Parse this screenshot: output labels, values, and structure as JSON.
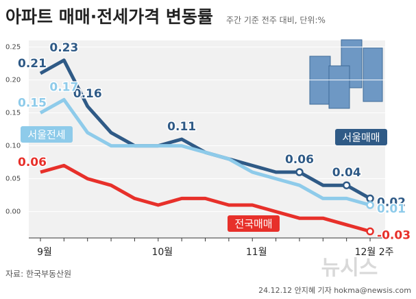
{
  "chart_data": {
    "type": "line",
    "title": "아파트 매매·전세가격 변동률",
    "subtitle": "주간 기준 전주 대비, 단위:%",
    "source": "자료: 한국부동산원",
    "credit": "24.12.12 안지혜 기자 hokma@newsis.com",
    "watermark": "뉴시스",
    "categories": [
      "9월",
      null,
      null,
      null,
      null,
      "10월",
      null,
      null,
      null,
      "11월",
      null,
      null,
      null,
      null,
      "12월 2주"
    ],
    "ylim": [
      -0.04,
      0.26
    ],
    "yticks": [
      {
        "value": 0.0,
        "label": "0.00"
      },
      0.05,
      {
        "value": 0.1,
        "label": "0.10"
      },
      0.15,
      {
        "value": 0.2,
        "label": "0.20"
      },
      0.25
    ],
    "grid": true,
    "series": [
      {
        "name": "서울매매",
        "color": "#2f5a86",
        "values": [
          0.21,
          0.23,
          0.16,
          0.12,
          0.1,
          0.1,
          0.11,
          0.09,
          0.08,
          0.07,
          0.06,
          0.06,
          0.04,
          0.04,
          0.02
        ],
        "value_labels": [
          "0.21",
          "0.23",
          "0.16",
          null,
          null,
          null,
          "0.11",
          null,
          null,
          null,
          null,
          "0.06",
          null,
          "0.04",
          "0.02"
        ]
      },
      {
        "name": "서울전세",
        "color": "#8ecbea",
        "values": [
          0.15,
          0.17,
          0.12,
          0.1,
          0.1,
          0.1,
          0.1,
          0.09,
          0.08,
          0.06,
          0.05,
          0.04,
          0.02,
          0.02,
          0.01
        ],
        "value_labels": [
          "0.15",
          "0.17",
          null,
          null,
          null,
          null,
          null,
          null,
          null,
          null,
          null,
          null,
          null,
          null,
          "0.01"
        ]
      },
      {
        "name": "전국매매",
        "color": "#e7302a",
        "values": [
          0.06,
          0.07,
          0.05,
          0.04,
          0.02,
          0.01,
          0.02,
          0.02,
          0.01,
          0.01,
          0.0,
          -0.01,
          -0.01,
          -0.02,
          -0.03
        ],
        "value_labels": [
          "0.06",
          null,
          null,
          null,
          null,
          null,
          null,
          null,
          null,
          null,
          null,
          null,
          null,
          null,
          "-0.03"
        ]
      }
    ]
  }
}
